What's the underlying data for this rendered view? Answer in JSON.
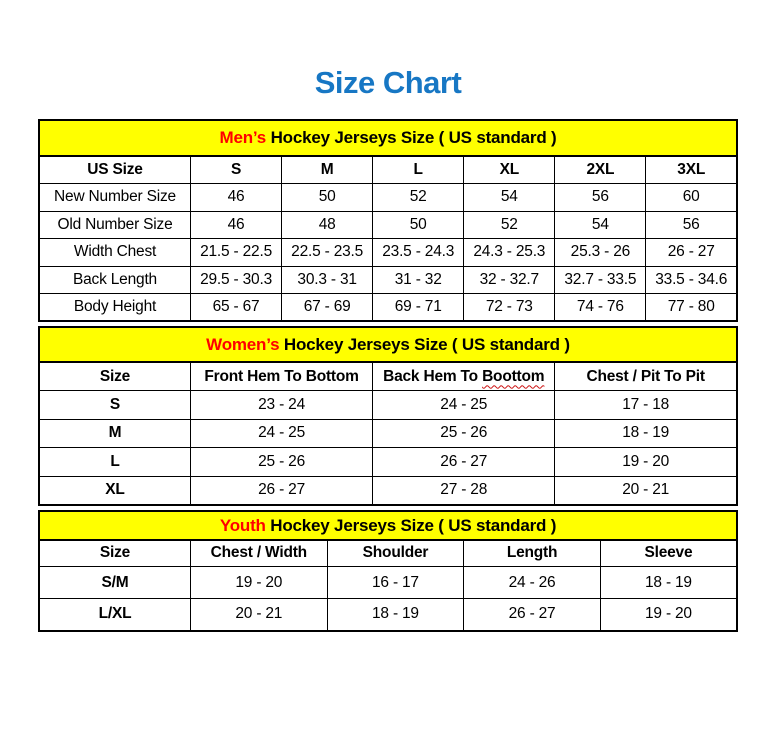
{
  "page": {
    "title": "Size Chart"
  },
  "colors": {
    "title_blue": "#1777C4",
    "banner_yellow": "#FFFF00",
    "accent_red": "#FF0000",
    "squiggle_red": "#CC1111",
    "border_black": "#000000"
  },
  "sections": [
    {
      "id": "mens",
      "banner": {
        "highlight": "Men’s",
        "rest": " Hockey Jerseys Size ( US standard )"
      },
      "columns": [
        "US Size",
        "S",
        "M",
        "L",
        "XL",
        "2XL",
        "3XL"
      ],
      "rows": [
        {
          "label": "New Number Size",
          "values": [
            "46",
            "50",
            "52",
            "54",
            "56",
            "60"
          ]
        },
        {
          "label": "Old Number Size",
          "values": [
            "46",
            "48",
            "50",
            "52",
            "54",
            "56"
          ]
        },
        {
          "label": "Width Chest",
          "values": [
            "21.5 - 22.5",
            "22.5 - 23.5",
            "23.5 - 24.3",
            "24.3 - 25.3",
            "25.3 - 26",
            "26 - 27"
          ]
        },
        {
          "label": "Back Length",
          "values": [
            "29.5 - 30.3",
            "30.3 - 31",
            "31 - 32",
            "32 - 32.7",
            "32.7 - 33.5",
            "33.5 - 34.6"
          ]
        },
        {
          "label": "Body Height",
          "values": [
            "65 - 67",
            "67 - 69",
            "69 - 71",
            "72 - 73",
            "74 - 76",
            "77 - 80"
          ]
        }
      ]
    },
    {
      "id": "womens",
      "banner": {
        "highlight": "Women’s",
        "rest": " Hockey Jerseys Size ( US standard )"
      },
      "columns": [
        "Size",
        "Front Hem To Bottom",
        "Back Hem To Boottom",
        "Chest / Pit To Pit"
      ],
      "squiggle": {
        "col": 2,
        "word": "Boottom"
      },
      "rows": [
        {
          "label": "S",
          "values": [
            "23 - 24",
            "24 - 25",
            "17 - 18"
          ]
        },
        {
          "label": "M",
          "values": [
            "24 - 25",
            "25 - 26",
            "18 - 19"
          ]
        },
        {
          "label": "L",
          "values": [
            "25 - 26",
            "26 - 27",
            "19 - 20"
          ]
        },
        {
          "label": "XL",
          "values": [
            "26 - 27",
            "27 - 28",
            "20 - 21"
          ]
        }
      ]
    },
    {
      "id": "youth",
      "banner": {
        "highlight": "Youth",
        "rest": " Hockey Jerseys Size ( US standard )"
      },
      "columns": [
        "Size",
        "Chest / Width",
        "Shoulder",
        "Length",
        "Sleeve"
      ],
      "rows": [
        {
          "label": "S/M",
          "values": [
            "19 - 20",
            "16 - 17",
            "24 - 26",
            "18 - 19"
          ]
        },
        {
          "label": "L/XL",
          "values": [
            "20 - 21",
            "18 - 19",
            "26 - 27",
            "19 - 20"
          ]
        }
      ]
    }
  ]
}
